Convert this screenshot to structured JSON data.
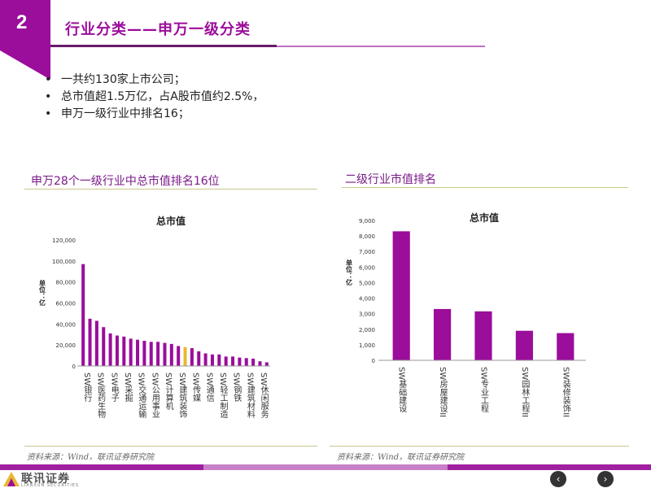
{
  "slide": {
    "number": "2",
    "title": "行业分类——申万一级分类"
  },
  "bullets": [
    "一共约130家上市公司；",
    "总市值超1.5万亿，占A股市值约2.5%，",
    "申万一级行业中排名16；"
  ],
  "left_section": {
    "title": "申万28个一级行业中总市值排名16位",
    "source": "资料来源：Wind，联讯证券研究院"
  },
  "right_section": {
    "title": "二级行业市值排名",
    "source": "资料来源：Wind，联讯证券研究院"
  },
  "footer": {
    "logo_name": "联讯证券",
    "logo_sub": "LIANXUN SECURITIES",
    "prev_icon": "‹",
    "next_icon": "›"
  },
  "colors": {
    "bar": "#9b0d9b",
    "highlight": "#e8b830",
    "accent": "#9b0d9b"
  },
  "chart_data": [
    {
      "type": "bar",
      "title": "总市值",
      "ylabel": "单位：亿",
      "ylim": [
        0,
        120000
      ],
      "yticks": [
        "0",
        "20,000",
        "40,000",
        "60,000",
        "80,000",
        "100,000",
        "120,000"
      ],
      "ytick_values": [
        0,
        20000,
        40000,
        60000,
        80000,
        100000,
        120000
      ],
      "values": [
        97000,
        45000,
        43000,
        37000,
        31000,
        29000,
        28000,
        26000,
        25000,
        24000,
        23000,
        23000,
        22000,
        21000,
        19000,
        18000,
        17000,
        14000,
        12000,
        11000,
        11000,
        9000,
        9000,
        8000,
        7500,
        7000,
        4500,
        3500
      ],
      "highlight_index": 15,
      "tick_labels": [
        "SW银行",
        "SW医药生物",
        "SW电子",
        "SW采掘",
        "SW交通运输",
        "SW公用事业",
        "SW计算机",
        "SW建筑装饰",
        "SW传媒",
        "SW通信",
        "SW轻工制造",
        "SW钢铁",
        "SW建筑材料",
        "SW休闲服务"
      ]
    },
    {
      "type": "bar",
      "title": "总市值",
      "ylabel": "单位：亿",
      "ylim": [
        0,
        9000
      ],
      "yticks": [
        "0",
        "1,000",
        "2,000",
        "3,000",
        "4,000",
        "5,000",
        "6,000",
        "7,000",
        "8,000",
        "9,000"
      ],
      "ytick_values": [
        0,
        1000,
        2000,
        3000,
        4000,
        5000,
        6000,
        7000,
        8000,
        9000
      ],
      "categories": [
        "SW基础建设",
        "SW房屋建设II",
        "SW专业工程",
        "SW园林工程II",
        "SW装修装饰II"
      ],
      "values": [
        8300,
        3300,
        3150,
        1900,
        1750
      ]
    }
  ]
}
